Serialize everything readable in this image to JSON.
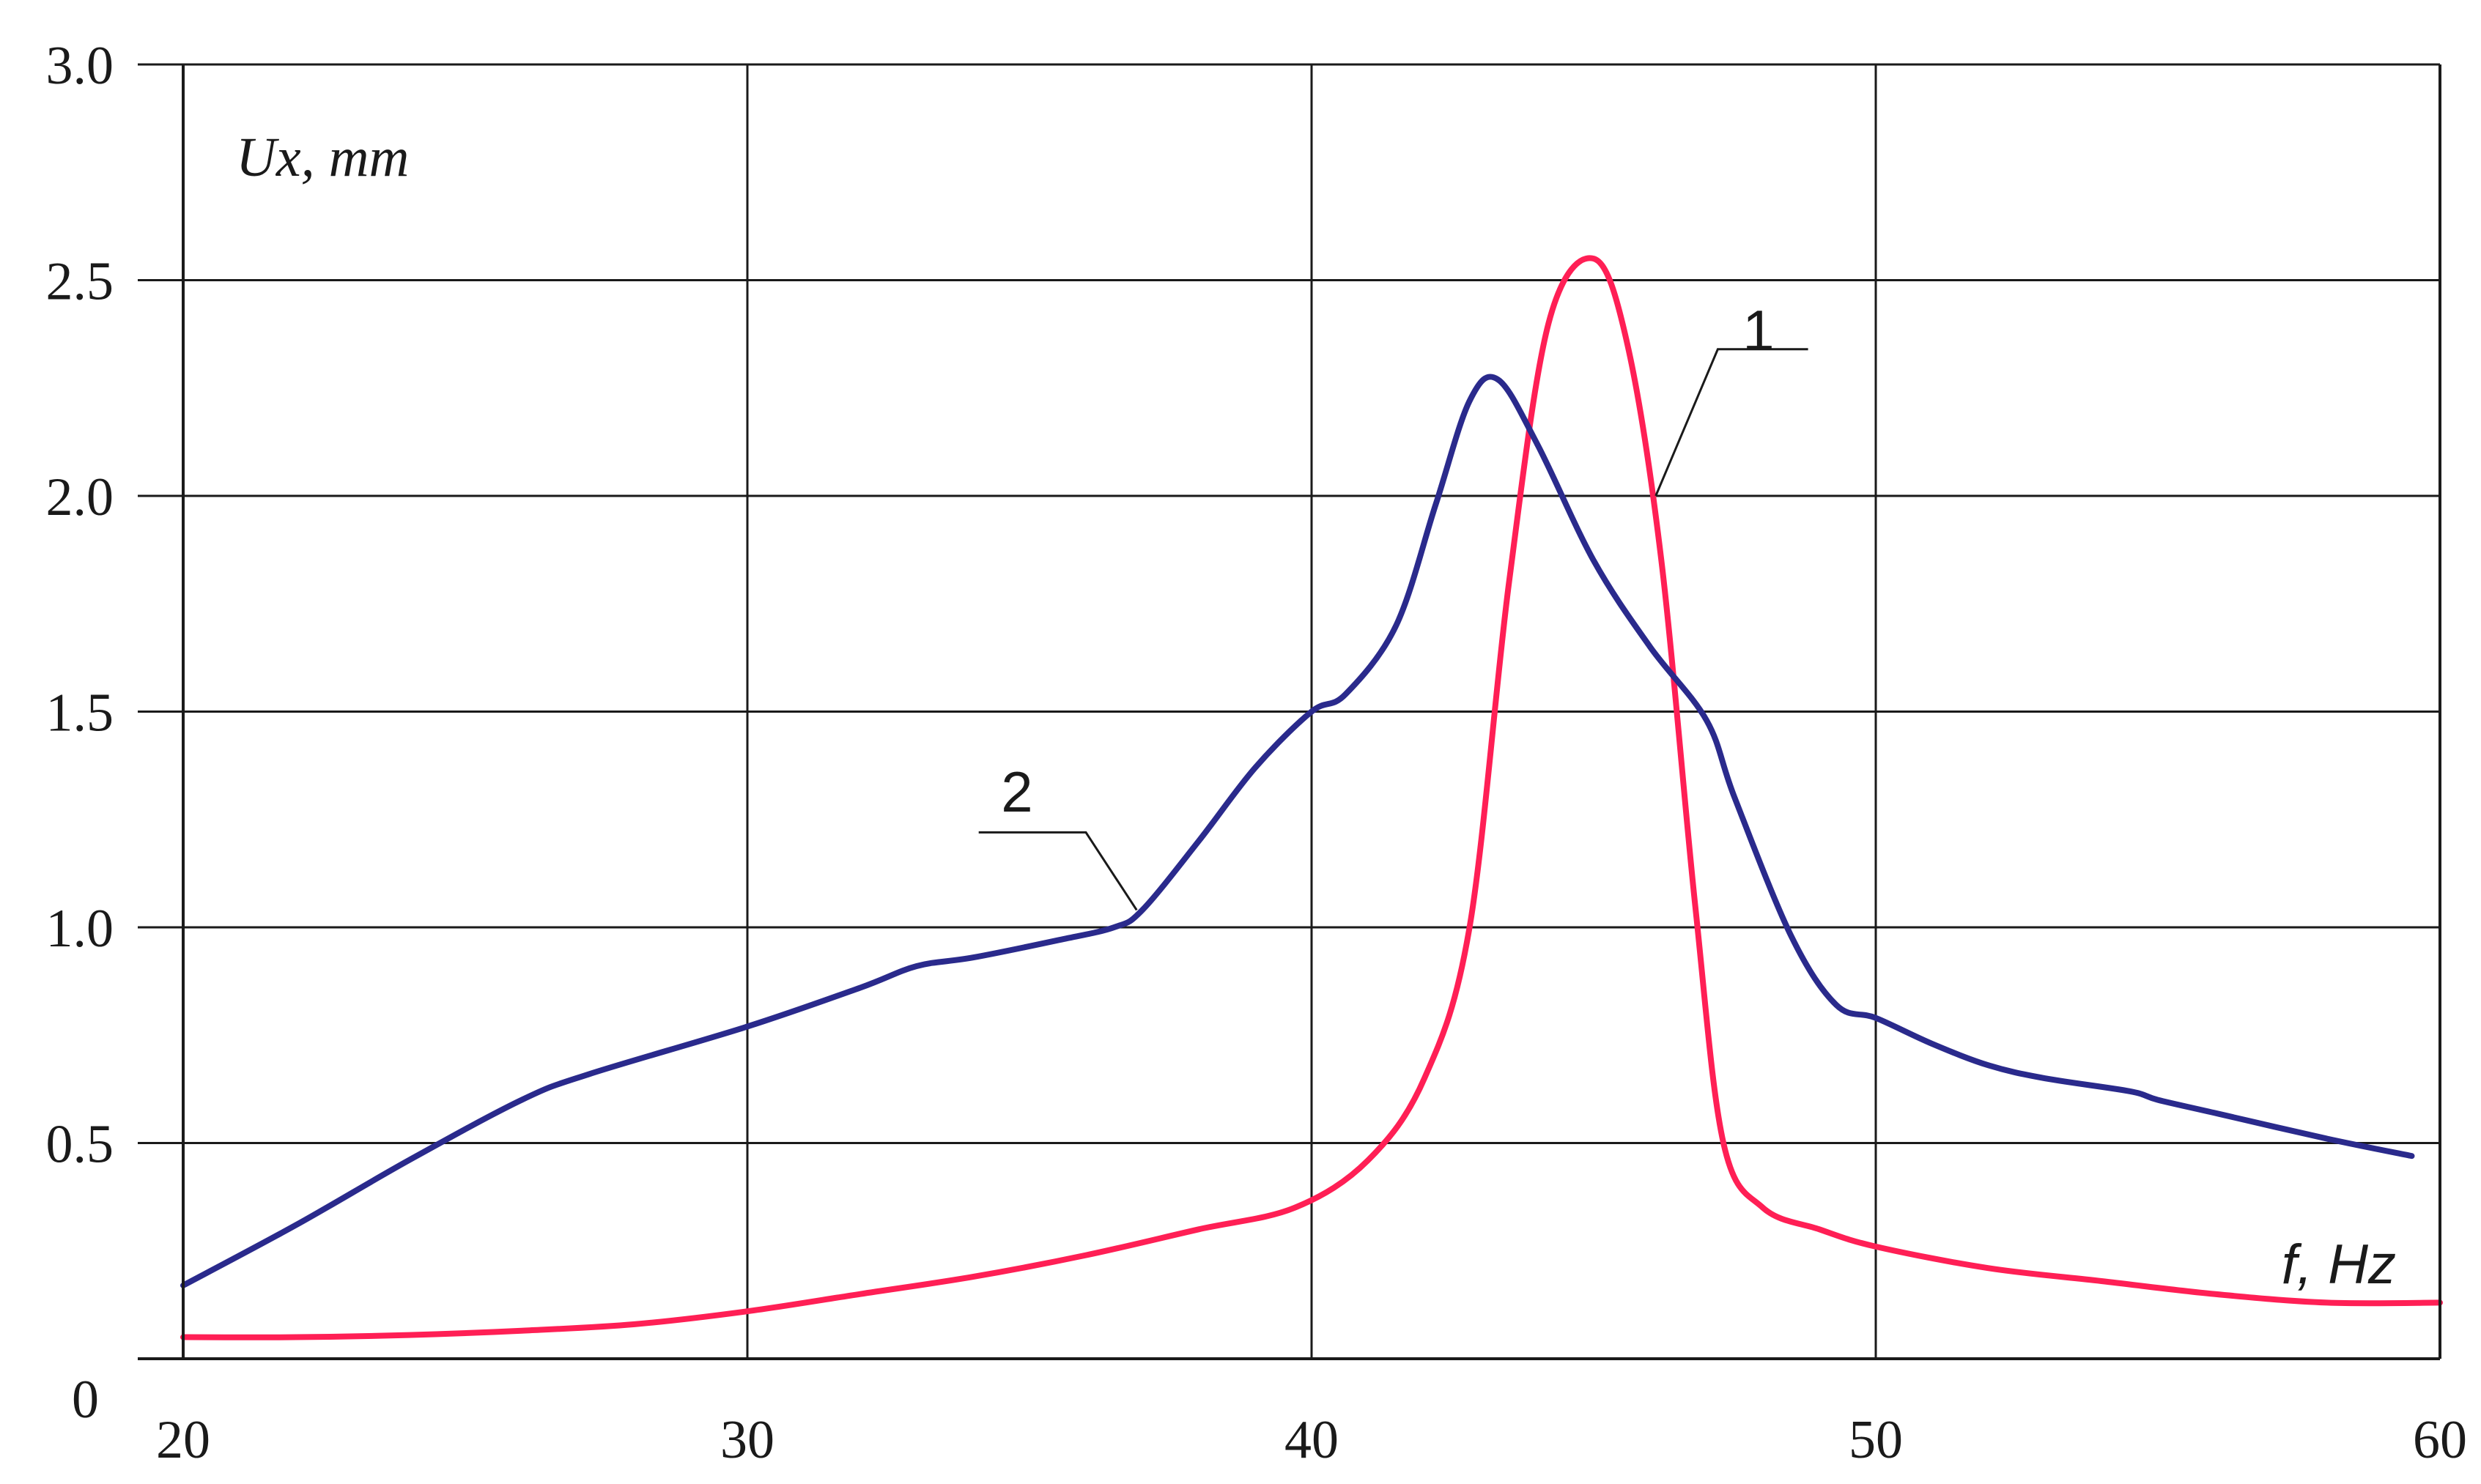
{
  "chart_data": {
    "type": "line",
    "title": "",
    "ylabel": "Ux, mm",
    "xlabel": "f, Hz",
    "xlim": [
      20,
      60
    ],
    "ylim": [
      0,
      3.0
    ],
    "x_ticks": [
      20,
      30,
      40,
      50,
      60
    ],
    "x_tick_labels": [
      "20",
      "30",
      "40",
      "50",
      "60"
    ],
    "y_ticks": [
      0,
      0.5,
      1.0,
      1.5,
      2.0,
      2.5,
      3.0
    ],
    "y_tick_labels": [
      "0",
      "0.5",
      "1.0",
      "1.5",
      "2.0",
      "2.5",
      "3.0"
    ],
    "grid": true,
    "legend": "none",
    "series": [
      {
        "name": "1",
        "color": "#ff1f55",
        "x": [
          20,
          22,
          24,
          26,
          28,
          30,
          32,
          34,
          36,
          38,
          39.7,
          41,
          42,
          42.8,
          43.5,
          44.2,
          45,
          45.6,
          46.2,
          46.8,
          47.3,
          48,
          49,
          50,
          52,
          54,
          56,
          58,
          60
        ],
        "y": [
          0.05,
          0.05,
          0.055,
          0.065,
          0.08,
          0.11,
          0.15,
          0.19,
          0.24,
          0.3,
          0.35,
          0.46,
          0.65,
          1.0,
          1.8,
          2.4,
          2.55,
          2.35,
          1.85,
          1.05,
          0.5,
          0.35,
          0.3,
          0.26,
          0.21,
          0.18,
          0.15,
          0.13,
          0.13
        ]
      },
      {
        "name": "2",
        "color": "#2a2a8c",
        "x": [
          20,
          22,
          24,
          26,
          27.2,
          30,
          32,
          33,
          34,
          35.5,
          36.5,
          37,
          38,
          39,
          40,
          40.6,
          41.5,
          42.2,
          42.8,
          43.3,
          44,
          45,
          46,
          47,
          47.5,
          48.5,
          49.3,
          50,
          51,
          52,
          53,
          54.5,
          55,
          56,
          58,
          59.5
        ],
        "y": [
          0.17,
          0.31,
          0.46,
          0.6,
          0.66,
          0.77,
          0.86,
          0.91,
          0.93,
          0.97,
          1.0,
          1.04,
          1.2,
          1.37,
          1.5,
          1.54,
          1.7,
          1.98,
          2.22,
          2.27,
          2.12,
          1.85,
          1.65,
          1.48,
          1.3,
          0.98,
          0.82,
          0.79,
          0.73,
          0.68,
          0.65,
          0.62,
          0.6,
          0.57,
          0.51,
          0.47
        ]
      }
    ],
    "curve_labels": [
      "1",
      "2"
    ]
  }
}
